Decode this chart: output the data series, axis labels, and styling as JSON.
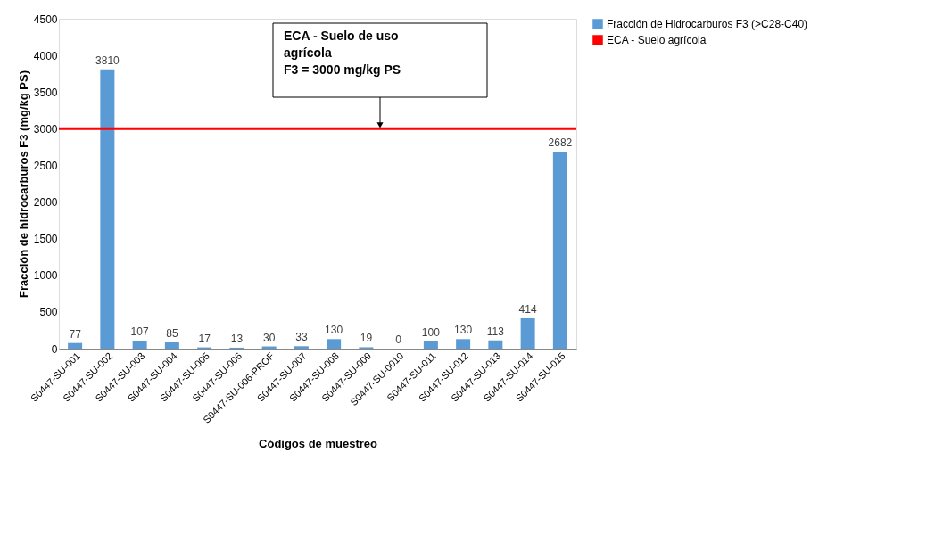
{
  "chart_data": {
    "type": "bar",
    "xlabel": "Códigos de muestreo",
    "ylabel": "Fracción  de hidrocarburos F3 (mg/kg PS)",
    "categories": [
      "S0447-SU-001",
      "S0447-SU-002",
      "S0447-SU-003",
      "S0447-SU-004",
      "S0447-SU-005",
      "S0447-SU-006",
      "S0447-SU-006-PROF",
      "S0447-SU-007",
      "S0447-SU-008",
      "S0447-SU-009",
      "S0447-SU-0010",
      "S0447-SU-011",
      "S0447-SU-012",
      "S0447-SU-013",
      "S0447-SU-014",
      "S0447-SU-015"
    ],
    "series": [
      {
        "name": "Fracción de Hidrocarburos F3 (>C28-C40)",
        "color": "#5b9bd5",
        "values": [
          77,
          3810,
          107,
          85,
          17,
          13,
          30,
          33,
          130,
          19,
          0,
          100,
          130,
          113,
          414,
          2682
        ]
      }
    ],
    "data_labels": true,
    "ylim": [
      0,
      4500
    ],
    "yticks": [
      0,
      500,
      1000,
      1500,
      2000,
      2500,
      3000,
      3500,
      4000,
      4500
    ],
    "ref_lines": [
      {
        "axis": "y",
        "value": 3000,
        "label": "ECA - Suelo agrícola",
        "color": "#ff0000",
        "line_style": "solid"
      }
    ],
    "annotations": [
      "ECA - Suelo de uso\nagrícola\nF3 = 3000 mg/kg PS"
    ],
    "grid": false,
    "legend": "right"
  }
}
